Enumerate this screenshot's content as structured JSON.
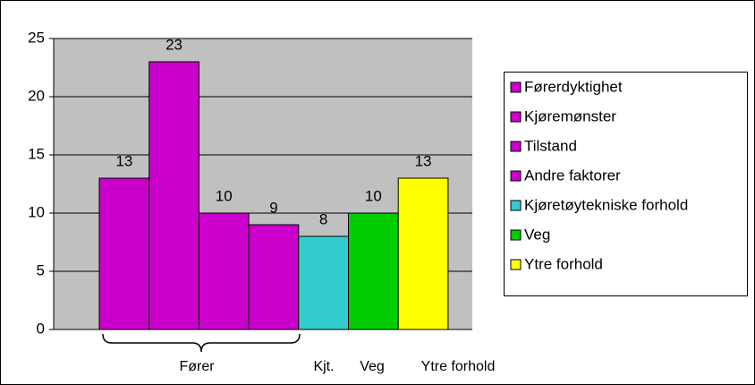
{
  "chart_data": {
    "type": "bar",
    "ylim": [
      0,
      25
    ],
    "yticks": [
      0,
      5,
      10,
      15,
      20,
      25
    ],
    "grid": true,
    "series": [
      {
        "name": "Førerdyktighet",
        "color": "#cc00cc",
        "values": [
          13
        ]
      },
      {
        "name": "Kjøremønster",
        "color": "#cc00cc",
        "values": [
          23
        ]
      },
      {
        "name": "Tilstand",
        "color": "#cc00cc",
        "values": [
          10
        ]
      },
      {
        "name": "Andre faktorer",
        "color": "#cc00cc",
        "values": [
          9
        ]
      },
      {
        "name": "Kjøretøytekniske forhold",
        "color": "#33cccc",
        "values": [
          8
        ]
      },
      {
        "name": "Veg",
        "color": "#00cc00",
        "values": [
          10
        ]
      },
      {
        "name": "Ytre forhold",
        "color": "#ffff00",
        "values": [
          13
        ]
      }
    ],
    "groups": [
      "Fører",
      "Kjt.",
      "Veg",
      "Ytre forhold"
    ]
  }
}
